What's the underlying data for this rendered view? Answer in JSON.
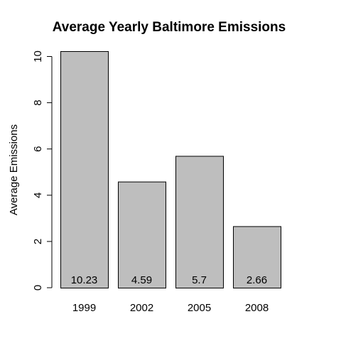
{
  "chart_data": {
    "type": "bar",
    "title": "Average Yearly Baltimore Emissions",
    "xlabel": "",
    "ylabel": "Average Emissions",
    "categories": [
      "1999",
      "2002",
      "2005",
      "2008"
    ],
    "values": [
      10.23,
      4.59,
      5.7,
      2.66
    ],
    "data_labels": [
      "10.23",
      "4.59",
      "5.7",
      "2.66"
    ],
    "ylim": [
      0,
      10.23
    ],
    "yticks": [
      0,
      2,
      4,
      6,
      8,
      10
    ],
    "ytick_labels": [
      "0",
      "2",
      "4",
      "6",
      "8",
      "10"
    ],
    "grid": false,
    "bar_fill": "#bebebe",
    "bar_stroke": "#000000"
  }
}
